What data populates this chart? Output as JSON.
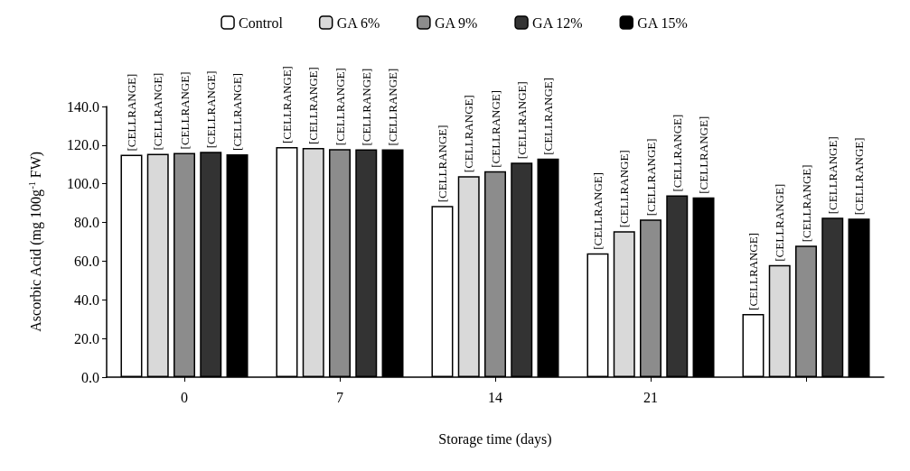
{
  "chart_data": {
    "type": "bar",
    "categories": [
      "0",
      "7",
      "14",
      "21",
      null
    ],
    "xlabel": "Storage time (days)",
    "ylabel": "Ascorbic Acid (mg 100g$^{-1}$ FW)",
    "series": [
      {
        "name": "Control",
        "color": "#ffffff",
        "values": [
          115,
          119,
          88.5,
          64,
          32.7
        ],
        "value_labels": [
          "[CELLRANGE]",
          "[CELLRANGE]",
          "[CELLRANGE]",
          "[CELLRANGE]",
          "[CELLRANGE]"
        ]
      },
      {
        "name": "GA 6%",
        "color": "#d9d9d9",
        "values": [
          115.5,
          118.5,
          104,
          75.5,
          58
        ],
        "value_labels": [
          "[CELLRANGE]",
          "[CELLRANGE]",
          "[CELLRANGE]",
          "[CELLRANGE]",
          "[CELLRANGE]"
        ]
      },
      {
        "name": "GA 9%",
        "color": "#8c8c8c",
        "values": [
          116,
          118,
          106.5,
          81.5,
          68
        ],
        "value_labels": [
          "[CELLRANGE]",
          "[CELLRANGE]",
          "[CELLRANGE]",
          "[CELLRANGE]",
          "[CELLRANGE]"
        ]
      },
      {
        "name": "GA 12%",
        "color": "#333333",
        "values": [
          116.5,
          117.8,
          111,
          94,
          82.5
        ],
        "value_labels": [
          "[CELLRANGE]",
          "[CELLRANGE]",
          "[CELLRANGE]",
          "[CELLRANGE]",
          "[CELLRANGE]"
        ]
      },
      {
        "name": "GA 15%",
        "color": "#000000",
        "values": [
          115.3,
          117.8,
          113,
          93,
          82
        ],
        "value_labels": [
          "[CELLRANGE]",
          "[CELLRANGE]",
          "[CELLRANGE]",
          "[CELLRANGE]",
          "[CELLRANGE]"
        ]
      }
    ],
    "ylim": [
      0,
      140
    ],
    "yticks": [
      {
        "value": 0,
        "label": "0.0"
      },
      {
        "value": 20,
        "label": "20.0"
      },
      {
        "value": 40,
        "label": "40.0"
      },
      {
        "value": 60,
        "label": "60.0"
      },
      {
        "value": 80,
        "label": "80.0"
      },
      {
        "value": 100,
        "label": "100.0"
      },
      {
        "value": 120,
        "label": "120.0"
      },
      {
        "value": 140,
        "label": "140.0"
      }
    ],
    "grid": false,
    "legend": "top"
  }
}
